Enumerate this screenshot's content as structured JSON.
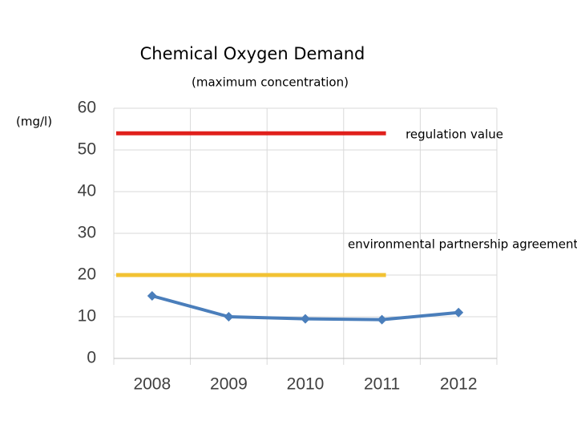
{
  "chart_data": {
    "type": "line",
    "title": "Chemical Oxygen Demand",
    "subtitle": "(maximum concentration)",
    "y_label": "(mg/l)",
    "categories": [
      "2008",
      "2009",
      "2010",
      "2011",
      "2012"
    ],
    "series": [
      {
        "color": "#4a7ebb",
        "values": [
          15,
          10,
          9.5,
          9.3,
          11
        ]
      }
    ],
    "reference_lines": [
      {
        "label": "regulation value",
        "value": 54,
        "color": "#e0201c"
      },
      {
        "label": "environmental partnership agreement",
        "value": 20,
        "color": "#f2c233"
      }
    ],
    "ylim": [
      0,
      60
    ],
    "yticks": [
      0,
      10,
      20,
      30,
      40,
      50,
      60
    ],
    "grid": true
  }
}
